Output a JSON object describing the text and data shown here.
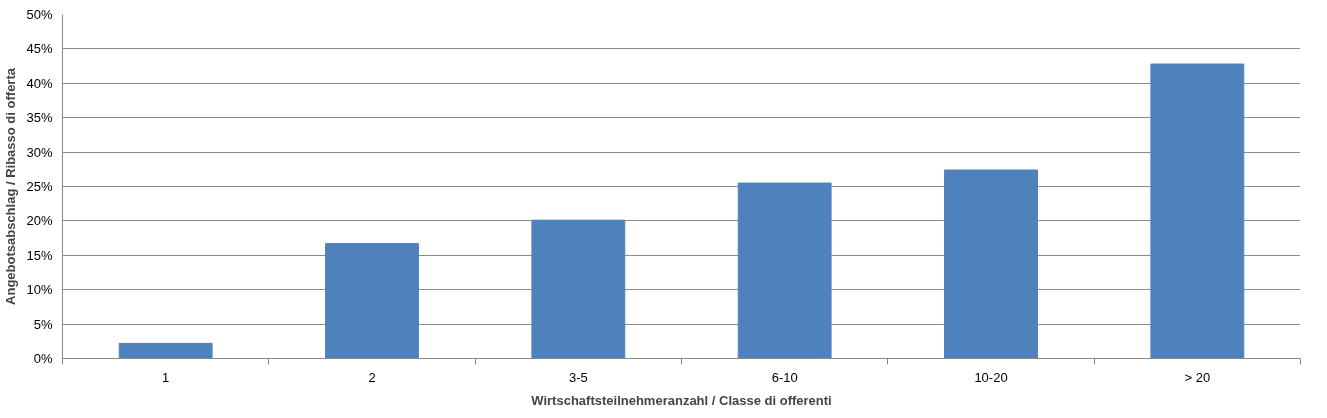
{
  "chart_data": {
    "type": "bar",
    "xlabel": "Wirtschaftsteilnehmeranzahl / Classe di offerenti",
    "ylabel": "Angebotsabschlag / Ribasso di offerta",
    "categories": [
      "1",
      "2",
      "3-5",
      "6-10",
      "10-20",
      "> 20"
    ],
    "values": [
      2.2,
      16.7,
      20.1,
      25.5,
      27.4,
      42.8
    ],
    "color": "#4f81bd",
    "ylim": [
      0,
      50
    ],
    "yticks": [
      {
        "value": 0,
        "label": "0%"
      },
      {
        "value": 5,
        "label": "5%"
      },
      {
        "value": 10,
        "label": "10%"
      },
      {
        "value": 15,
        "label": "15%"
      },
      {
        "value": 20,
        "label": "20%"
      },
      {
        "value": 25,
        "label": "25%"
      },
      {
        "value": 30,
        "label": "30%"
      },
      {
        "value": 35,
        "label": "35%"
      },
      {
        "value": 40,
        "label": "40%"
      },
      {
        "value": 45,
        "label": "45%"
      },
      {
        "value": 50,
        "label": "50%"
      }
    ],
    "grid": "y"
  }
}
